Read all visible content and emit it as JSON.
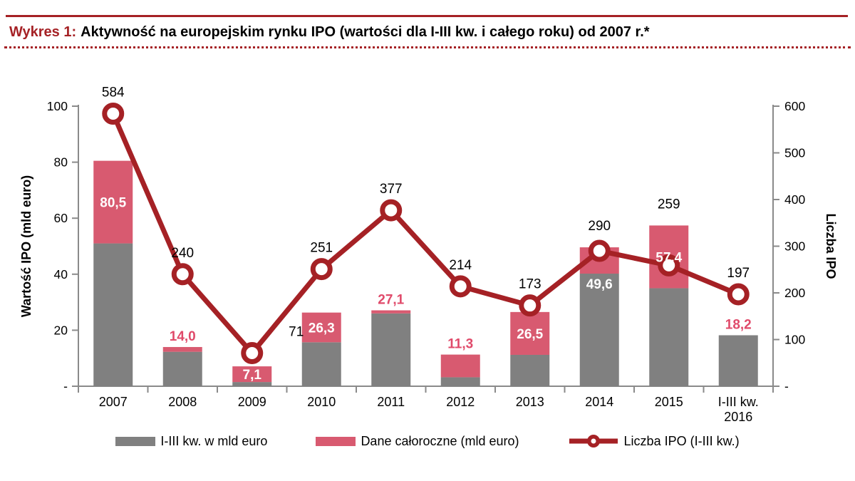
{
  "header": {
    "prefix": "Wykres 1:",
    "title": "Aktywność na europejskim rynku IPO (wartości dla I-III kw. i całego roku) od 2007 r.*"
  },
  "chart_data": {
    "type": "combo_stacked_bar_line",
    "categories": [
      "2007",
      "2008",
      "2009",
      "2010",
      "2011",
      "2012",
      "2013",
      "2014",
      "2015",
      "I-III kw.\n2016"
    ],
    "points": [
      {
        "category": "2007",
        "q13_est": 51.0,
        "full_year": 80.5,
        "full_year_label": "80,5",
        "label_placement": "inside",
        "ipo_count": 584,
        "ipo_count_label": "584",
        "count_label_dx": 0
      },
      {
        "category": "2008",
        "q13_est": 12.3,
        "full_year": 14.0,
        "full_year_label": "14,0",
        "label_placement": "above",
        "ipo_count": 240,
        "ipo_count_label": "240",
        "count_label_dx": 0
      },
      {
        "category": "2009",
        "q13_est": 1.5,
        "full_year": 7.1,
        "full_year_label": "7,1",
        "label_placement": "inside",
        "ipo_count": 71,
        "ipo_count_label": "71",
        "count_label_dx": 62
      },
      {
        "category": "2010",
        "q13_est": 15.7,
        "full_year": 26.3,
        "full_year_label": "26,3",
        "label_placement": "inside",
        "ipo_count": 251,
        "ipo_count_label": "251",
        "count_label_dx": 0
      },
      {
        "category": "2011",
        "q13_est": 26.0,
        "full_year": 27.1,
        "full_year_label": "27,1",
        "label_placement": "above",
        "ipo_count": 377,
        "ipo_count_label": "377",
        "count_label_dx": 0
      },
      {
        "category": "2012",
        "q13_est": 3.2,
        "full_year": 11.3,
        "full_year_label": "11,3",
        "label_placement": "above",
        "ipo_count": 214,
        "ipo_count_label": "214",
        "count_label_dx": 0
      },
      {
        "category": "2013",
        "q13_est": 11.2,
        "full_year": 26.5,
        "full_year_label": "26,5",
        "label_placement": "inside",
        "ipo_count": 173,
        "ipo_count_label": "173",
        "count_label_dx": 0
      },
      {
        "category": "2014",
        "q13_est": 40.2,
        "full_year": 49.6,
        "full_year_label": "49,6",
        "label_placement": "inside-gray",
        "ipo_count": 290,
        "ipo_count_label": "290",
        "count_label_dx": 0
      },
      {
        "category": "2015",
        "q13_est": 35.0,
        "full_year": 57.4,
        "full_year_label": "57,4",
        "label_placement": "inside",
        "ipo_count": 259,
        "ipo_count_label": "259",
        "count_label_dx": 0
      },
      {
        "category": "I-III kw.\n2016",
        "q13_est": 18.2,
        "full_year": null,
        "full_year_label": "18,2",
        "label_placement": "above",
        "ipo_count": 197,
        "ipo_count_label": "197",
        "count_label_dx": 0
      }
    ],
    "left_axis": {
      "title": "Wartość IPO (mld euro)",
      "min": 0,
      "max": 100,
      "ticks": [
        {
          "label": "100",
          "value": 100
        },
        {
          "label": "80",
          "value": 80
        },
        {
          "label": "60",
          "value": 60
        },
        {
          "label": "40",
          "value": 40
        },
        {
          "label": "20",
          "value": 20
        },
        {
          "label": "-",
          "value": 0
        }
      ]
    },
    "right_axis": {
      "title": "Liczba IPO",
      "min": 0,
      "max": 600,
      "ticks": [
        {
          "label": "600",
          "value": 600
        },
        {
          "label": "500",
          "value": 500
        },
        {
          "label": "400",
          "value": 400
        },
        {
          "label": "300",
          "value": 300
        },
        {
          "label": "200",
          "value": 200
        },
        {
          "label": "100",
          "value": 100
        },
        {
          "label": "-",
          "value": 0
        }
      ]
    },
    "legend": [
      {
        "label": "I-III kw. w mld euro",
        "swatch": "bar",
        "color": "#808080"
      },
      {
        "label": "Dane całoroczne (mld euro)",
        "swatch": "bar",
        "color": "#D85A70"
      },
      {
        "label": "Liczba IPO (I-III kw.)",
        "swatch": "line-marker",
        "color": "#A52125"
      }
    ],
    "colors": {
      "line": "#A52125",
      "bar_q13": "#808080",
      "bar_full_year": "#D85A70",
      "value_label_outside": "#E04A6A",
      "value_label_inside": "#FFFFFF",
      "count_label": "#000000",
      "axis": "#8A8A8A",
      "accent_red": "#A52125"
    },
    "grid": false,
    "legend_position": "bottom"
  }
}
